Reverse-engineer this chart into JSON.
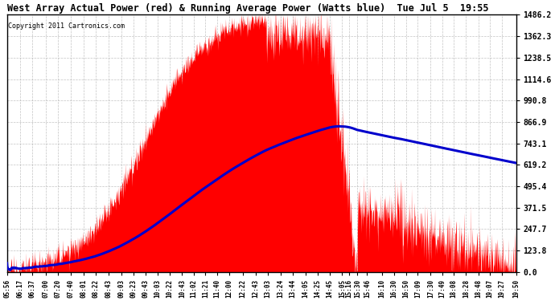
{
  "title": "West Array Actual Power (red) & Running Average Power (Watts blue)  Tue Jul 5  19:55",
  "copyright": "Copyright 2011 Cartronics.com",
  "background_color": "#ffffff",
  "plot_bg_color": "#ffffff",
  "ymin": 0.0,
  "ymax": 1486.2,
  "yticks": [
    0.0,
    123.8,
    247.7,
    371.5,
    495.4,
    619.2,
    743.1,
    866.9,
    990.8,
    1114.6,
    1238.5,
    1362.3,
    1486.2
  ],
  "xtick_labels": [
    "05:56",
    "06:17",
    "06:37",
    "07:00",
    "07:20",
    "07:40",
    "08:01",
    "08:22",
    "08:43",
    "09:03",
    "09:23",
    "09:43",
    "10:03",
    "10:22",
    "10:43",
    "11:02",
    "11:21",
    "11:40",
    "12:00",
    "12:22",
    "12:43",
    "13:03",
    "13:24",
    "13:44",
    "14:05",
    "14:25",
    "14:45",
    "15:05",
    "15:16",
    "15:30",
    "15:46",
    "16:10",
    "16:30",
    "16:50",
    "17:09",
    "17:30",
    "17:49",
    "18:08",
    "18:28",
    "18:48",
    "19:07",
    "19:27",
    "19:50"
  ],
  "actual_color": "#ff0000",
  "avg_color": "#0000cc",
  "grid_color": "#aaaaaa"
}
